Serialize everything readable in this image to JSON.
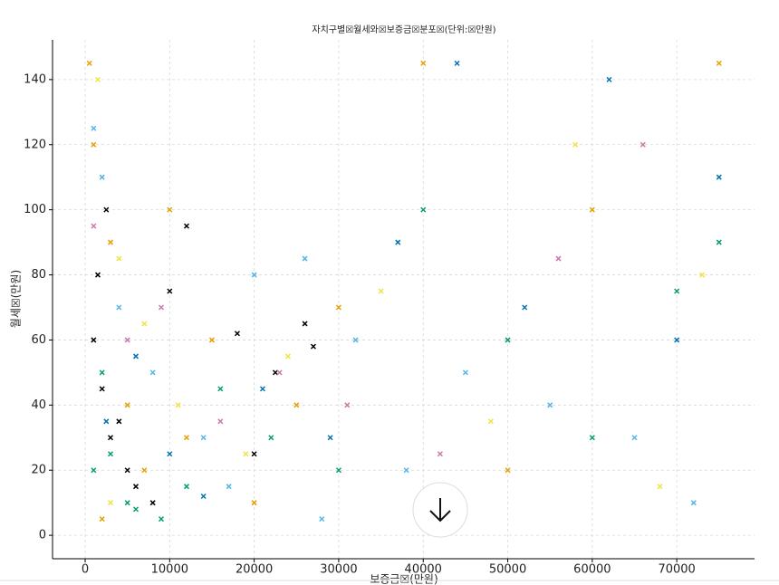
{
  "chart_data": {
    "type": "scatter",
    "title": "자치구별☒월세와☒보증금☒분포☒(단위:☒만원)",
    "x_label": "보증금☒(만원)",
    "y_label": "월세☒(만원)",
    "xlim": [
      -3860,
      79200
    ],
    "ylim": [
      -7.2,
      152.2
    ],
    "xticks": [
      0,
      10000,
      20000,
      30000,
      40000,
      50000,
      60000,
      70000
    ],
    "yticks": [
      0,
      20,
      40,
      60,
      80,
      100,
      120,
      140
    ],
    "grid": true,
    "series": [
      {
        "color": "#000000",
        "x": [
          1000,
          2000,
          3000,
          1500,
          5000,
          8000,
          10000,
          12000,
          18000,
          22500,
          26000,
          27000,
          4000,
          2500,
          6000,
          20000
        ],
        "values": [
          60,
          45,
          30,
          80,
          20,
          10,
          75,
          95,
          62,
          50,
          65,
          58,
          35,
          100,
          15,
          25
        ]
      },
      {
        "color": "#E69F00",
        "x": [
          500,
          1000,
          3000,
          5000,
          7000,
          10000,
          15000,
          20000,
          30000,
          40000,
          50000,
          60000,
          75000,
          2000,
          12000,
          25000
        ],
        "values": [
          145,
          120,
          90,
          40,
          20,
          100,
          60,
          10,
          70,
          145,
          20,
          100,
          145,
          5,
          30,
          40
        ]
      },
      {
        "color": "#56B4E9",
        "x": [
          2000,
          4000,
          8000,
          14000,
          20000,
          26000,
          32000,
          38000,
          45000,
          55000,
          65000,
          72000,
          1000,
          17000,
          28000
        ],
        "values": [
          110,
          70,
          50,
          30,
          80,
          85,
          60,
          20,
          50,
          40,
          30,
          10,
          125,
          15,
          5
        ]
      },
      {
        "color": "#009E73",
        "x": [
          1000,
          3000,
          5000,
          9000,
          12000,
          16000,
          22000,
          30000,
          40000,
          50000,
          60000,
          70000,
          75000,
          6000,
          2000
        ],
        "values": [
          20,
          25,
          10,
          5,
          15,
          45,
          30,
          20,
          100,
          60,
          30,
          75,
          90,
          8,
          50
        ]
      },
      {
        "color": "#F0E442",
        "x": [
          1500,
          4000,
          7000,
          11000,
          19000,
          24000,
          35000,
          48000,
          58000,
          68000,
          73000,
          3000
        ],
        "values": [
          140,
          85,
          65,
          40,
          25,
          55,
          75,
          35,
          120,
          15,
          80,
          10
        ]
      },
      {
        "color": "#0072B2",
        "x": [
          2500,
          6000,
          10000,
          14000,
          21000,
          29000,
          37000,
          44000,
          52000,
          62000,
          70000,
          75000
        ],
        "values": [
          35,
          55,
          25,
          12,
          45,
          30,
          90,
          145,
          70,
          140,
          60,
          110
        ]
      },
      {
        "color": "#CC79A7",
        "x": [
          1000,
          5000,
          9000,
          16000,
          23000,
          31000,
          42000,
          56000,
          66000
        ],
        "values": [
          95,
          60,
          70,
          35,
          50,
          40,
          25,
          85,
          120
        ]
      }
    ]
  }
}
